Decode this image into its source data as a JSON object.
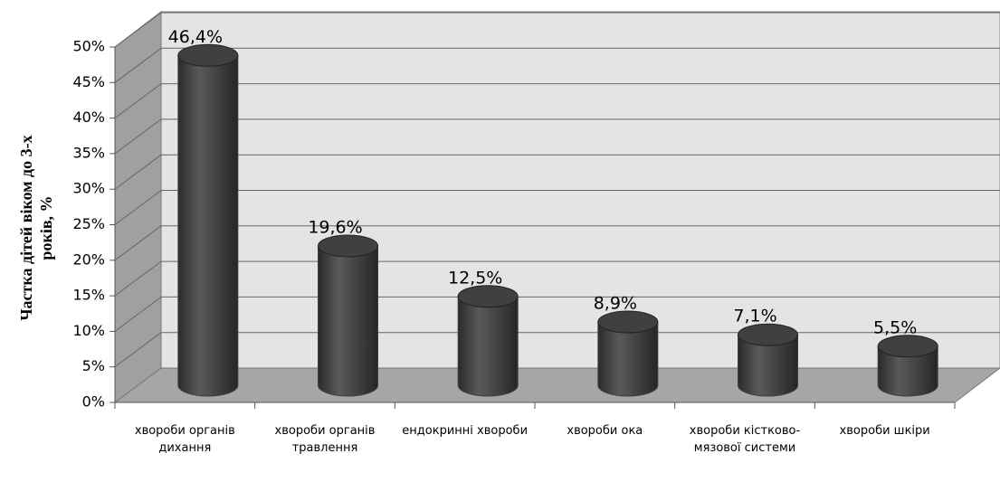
{
  "chart_data": {
    "type": "bar3d",
    "y_label": "Частка дітей віком до 3-х років, %",
    "categories": [
      "хвороби органів дихання",
      "хвороби органів травлення",
      "ендокринні хвороби",
      "хвороби ока",
      "хвороби кістково-мязової системи",
      "хвороби шкіри"
    ],
    "values": [
      46.4,
      19.6,
      12.5,
      8.9,
      7.1,
      5.5
    ],
    "value_labels": [
      "46,4%",
      "19,6%",
      "12,5%",
      "8,9%",
      "7,1%",
      "5,5%"
    ],
    "color": "#404040",
    "ylim": [
      0,
      50
    ],
    "yticks": [
      {
        "value": 0,
        "label": "0%"
      },
      {
        "value": 5,
        "label": "5%"
      },
      {
        "value": 10,
        "label": "10%"
      },
      {
        "value": 15,
        "label": "15%"
      },
      {
        "value": 20,
        "label": "20%"
      },
      {
        "value": 25,
        "label": "25%"
      },
      {
        "value": 30,
        "label": "30%"
      },
      {
        "value": 35,
        "label": "35%"
      },
      {
        "value": 40,
        "label": "40%"
      },
      {
        "value": 45,
        "label": "45%"
      },
      {
        "value": 50,
        "label": "50%"
      }
    ],
    "grid": true
  }
}
